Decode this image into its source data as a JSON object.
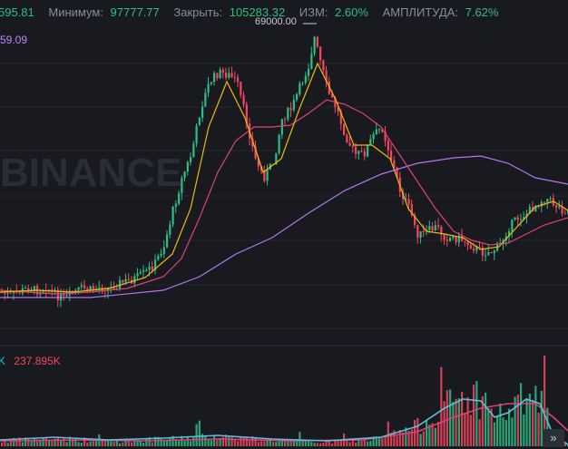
{
  "header": {
    "open_value": "595.81",
    "low_label": "Минимум:",
    "low_value": "97777.77",
    "close_label": "Закрыть:",
    "close_value": "105283.32",
    "change_label": "ИЗМ:",
    "change_value": "2.60%",
    "amplitude_label": "АМПЛИТУДА:",
    "amplitude_value": "7.62%"
  },
  "ma_value": "59.09",
  "peak_label": "69000.00",
  "volume": {
    "label_k": "K",
    "value": "237.895K"
  },
  "watermark": "BINANCE",
  "scroll_icon": "double-chevron-right-icon",
  "colors": {
    "up": "#2ebd85",
    "down": "#f6465d",
    "ma_fast": "#f0b90b",
    "ma_mid": "#e0407a",
    "ma_slow": "#b774f0",
    "vol_ma_fast": "#5bc0de",
    "vol_ma_slow": "#e0407a"
  },
  "chart_data": {
    "type": "candlestick",
    "title": "",
    "price_path": [
      [
        0,
        322
      ],
      [
        10,
        326
      ],
      [
        20,
        322
      ],
      [
        30,
        318
      ],
      [
        40,
        320
      ],
      [
        50,
        316
      ],
      [
        60,
        325
      ],
      [
        70,
        330
      ],
      [
        80,
        322
      ],
      [
        90,
        318
      ],
      [
        100,
        320
      ],
      [
        110,
        316
      ],
      [
        120,
        318
      ],
      [
        130,
        312
      ],
      [
        140,
        310
      ],
      [
        150,
        306
      ],
      [
        160,
        300
      ],
      [
        170,
        290
      ],
      [
        180,
        270
      ],
      [
        190,
        230
      ],
      [
        200,
        195
      ],
      [
        210,
        170
      ],
      [
        220,
        120
      ],
      [
        230,
        90
      ],
      [
        240,
        80
      ],
      [
        250,
        82
      ],
      [
        260,
        90
      ],
      [
        270,
        130
      ],
      [
        280,
        175
      ],
      [
        290,
        195
      ],
      [
        300,
        180
      ],
      [
        310,
        130
      ],
      [
        320,
        120
      ],
      [
        330,
        95
      ],
      [
        340,
        70
      ],
      [
        345,
        40
      ],
      [
        350,
        60
      ],
      [
        360,
        100
      ],
      [
        370,
        120
      ],
      [
        380,
        150
      ],
      [
        390,
        170
      ],
      [
        400,
        170
      ],
      [
        410,
        150
      ],
      [
        420,
        140
      ],
      [
        430,
        175
      ],
      [
        440,
        210
      ],
      [
        450,
        230
      ],
      [
        460,
        260
      ],
      [
        470,
        255
      ],
      [
        480,
        250
      ],
      [
        490,
        262
      ],
      [
        500,
        262
      ],
      [
        510,
        265
      ],
      [
        520,
        272
      ],
      [
        530,
        278
      ],
      [
        540,
        278
      ],
      [
        550,
        270
      ],
      [
        560,
        250
      ],
      [
        570,
        240
      ],
      [
        580,
        235
      ],
      [
        590,
        225
      ],
      [
        600,
        218
      ],
      [
        610,
        225
      ],
      [
        620,
        232
      ]
    ],
    "ma_fast_path": [
      [
        0,
        322
      ],
      [
        40,
        320
      ],
      [
        80,
        322
      ],
      [
        120,
        318
      ],
      [
        160,
        306
      ],
      [
        190,
        280
      ],
      [
        210,
        230
      ],
      [
        230,
        140
      ],
      [
        250,
        90
      ],
      [
        270,
        130
      ],
      [
        290,
        190
      ],
      [
        310,
        175
      ],
      [
        330,
        120
      ],
      [
        350,
        70
      ],
      [
        370,
        110
      ],
      [
        390,
        160
      ],
      [
        410,
        160
      ],
      [
        430,
        175
      ],
      [
        450,
        230
      ],
      [
        470,
        255
      ],
      [
        490,
        258
      ],
      [
        510,
        262
      ],
      [
        530,
        275
      ],
      [
        550,
        272
      ],
      [
        570,
        250
      ],
      [
        590,
        228
      ],
      [
        610,
        222
      ],
      [
        626,
        232
      ]
    ],
    "ma_mid_path": [
      [
        0,
        320
      ],
      [
        60,
        324
      ],
      [
        100,
        322
      ],
      [
        140,
        318
      ],
      [
        180,
        305
      ],
      [
        200,
        285
      ],
      [
        220,
        240
      ],
      [
        240,
        190
      ],
      [
        260,
        155
      ],
      [
        280,
        140
      ],
      [
        300,
        140
      ],
      [
        320,
        138
      ],
      [
        340,
        125
      ],
      [
        360,
        110
      ],
      [
        380,
        115
      ],
      [
        400,
        125
      ],
      [
        420,
        140
      ],
      [
        440,
        170
      ],
      [
        460,
        200
      ],
      [
        480,
        230
      ],
      [
        500,
        255
      ],
      [
        520,
        265
      ],
      [
        540,
        270
      ],
      [
        560,
        268
      ],
      [
        580,
        258
      ],
      [
        600,
        248
      ],
      [
        626,
        240
      ]
    ],
    "ma_slow_path": [
      [
        0,
        328
      ],
      [
        100,
        328
      ],
      [
        180,
        320
      ],
      [
        220,
        305
      ],
      [
        260,
        280
      ],
      [
        300,
        262
      ],
      [
        340,
        235
      ],
      [
        380,
        210
      ],
      [
        420,
        192
      ],
      [
        460,
        180
      ],
      [
        500,
        174
      ],
      [
        530,
        172
      ],
      [
        560,
        180
      ],
      [
        590,
        196
      ],
      [
        626,
        203
      ]
    ],
    "volume_ma_fast_path": [
      [
        0,
        485
      ],
      [
        60,
        482
      ],
      [
        120,
        485
      ],
      [
        180,
        483
      ],
      [
        240,
        480
      ],
      [
        300,
        484
      ],
      [
        360,
        486
      ],
      [
        420,
        482
      ],
      [
        460,
        470
      ],
      [
        490,
        450
      ],
      [
        510,
        440
      ],
      [
        530,
        442
      ],
      [
        545,
        460
      ],
      [
        560,
        455
      ],
      [
        580,
        440
      ],
      [
        595,
        445
      ],
      [
        610,
        480
      ],
      [
        626,
        490
      ]
    ],
    "volume_ma_slow_path": [
      [
        0,
        486
      ],
      [
        80,
        485
      ],
      [
        160,
        486
      ],
      [
        240,
        484
      ],
      [
        320,
        486
      ],
      [
        400,
        485
      ],
      [
        460,
        476
      ],
      [
        500,
        460
      ],
      [
        530,
        450
      ],
      [
        560,
        445
      ],
      [
        590,
        445
      ],
      [
        610,
        460
      ],
      [
        626,
        475
      ]
    ],
    "yaxis": "price",
    "grid": true
  }
}
